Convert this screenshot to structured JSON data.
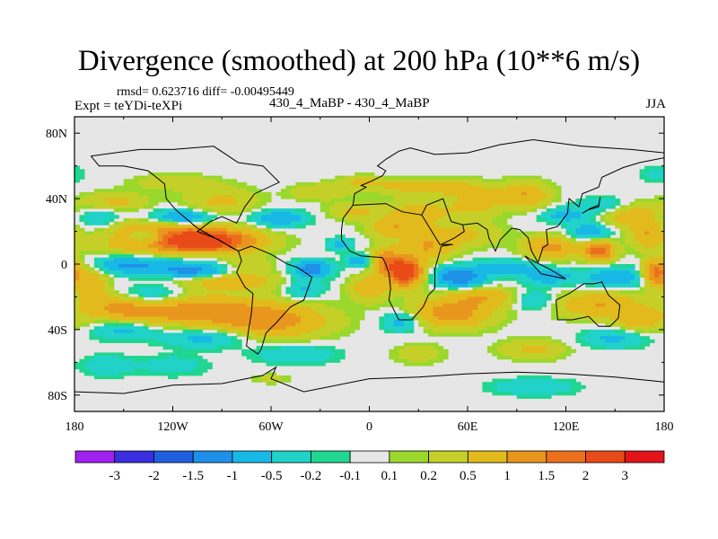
{
  "chart_data": {
    "type": "heatmap",
    "title": "Divergence (smoothed) at 200 hPa (10**6 m/s)",
    "stats_label": "rmsd= 0.623716 diff= -0.00495449",
    "expt_label": "Expt = teYDi-teXPi",
    "comparison_label": "430_4_MaBP - 430_4_MaBP",
    "season_label": "JJA",
    "x_axis": {
      "range": [
        -180,
        180
      ],
      "ticks": [
        -180,
        -120,
        -60,
        0,
        60,
        120,
        180
      ],
      "tick_labels": [
        "180",
        "120W",
        "60W",
        "0",
        "60E",
        "120E",
        "180"
      ]
    },
    "y_axis": {
      "range": [
        -90,
        90
      ],
      "ticks": [
        80,
        40,
        0,
        -40,
        -80
      ],
      "tick_labels": [
        "80N",
        "40N",
        "0",
        "40S",
        "80S"
      ]
    },
    "colorbar": {
      "labels": [
        "-3",
        "-2",
        "-1.5",
        "-1",
        "-0.5",
        "-0.2",
        "-0.1",
        "0.1",
        "0.2",
        "0.5",
        "1",
        "1.5",
        "2",
        "3"
      ],
      "levels": [
        -3,
        -2,
        -1.5,
        -1,
        -0.5,
        -0.2,
        -0.1,
        0.1,
        0.2,
        0.5,
        1,
        1.5,
        2,
        3
      ],
      "colors": [
        "#a020f0",
        "#3a2ee0",
        "#1e5fe0",
        "#1e90e8",
        "#18b8e6",
        "#20d2c8",
        "#20d690",
        "#e6e6e6",
        "#9ad82c",
        "#c4d028",
        "#e2ba1c",
        "#e9961e",
        "#ec701c",
        "#e84a18",
        "#e2141a"
      ]
    },
    "anomaly_centers": [
      {
        "lon": -100,
        "lat": 15,
        "value": 2.2,
        "rx": 30,
        "ry": 7
      },
      {
        "lon": -130,
        "lat": 22,
        "value": 1.0,
        "rx": 30,
        "ry": 7
      },
      {
        "lon": -120,
        "lat": 12,
        "value": 0.9,
        "rx": 45,
        "ry": 6
      },
      {
        "lon": -135,
        "lat": 17,
        "value": -1.1,
        "rx": 12,
        "ry": 5
      },
      {
        "lon": -115,
        "lat": 28,
        "value": -1.2,
        "rx": 22,
        "ry": 5
      },
      {
        "lon": -55,
        "lat": 28,
        "value": -0.9,
        "rx": 16,
        "ry": 5
      },
      {
        "lon": -165,
        "lat": 28,
        "value": -0.6,
        "rx": 15,
        "ry": 6
      },
      {
        "lon": -90,
        "lat": 38,
        "value": 0.6,
        "rx": 22,
        "ry": 9
      },
      {
        "lon": -155,
        "lat": 38,
        "value": 0.6,
        "rx": 20,
        "ry": 6
      },
      {
        "lon": -30,
        "lat": 44,
        "value": 0.5,
        "rx": 18,
        "ry": 5
      },
      {
        "lon": -120,
        "lat": 50,
        "value": 0.4,
        "rx": 25,
        "ry": 5
      },
      {
        "lon": -120,
        "lat": -2,
        "value": -0.7,
        "rx": 40,
        "ry": 5
      },
      {
        "lon": -150,
        "lat": 0,
        "value": -0.7,
        "rx": 20,
        "ry": 5
      },
      {
        "lon": -105,
        "lat": -5,
        "value": -0.9,
        "rx": 20,
        "ry": 4
      },
      {
        "lon": -85,
        "lat": -10,
        "value": 0.9,
        "rx": 30,
        "ry": 6
      },
      {
        "lon": -35,
        "lat": -3,
        "value": -1.3,
        "rx": 12,
        "ry": 5
      },
      {
        "lon": -75,
        "lat": 0,
        "value": 0.6,
        "rx": 15,
        "ry": 5
      },
      {
        "lon": -135,
        "lat": -20,
        "value": -1.0,
        "rx": 22,
        "ry": 7
      },
      {
        "lon": -110,
        "lat": -28,
        "value": 1.3,
        "rx": 45,
        "ry": 9
      },
      {
        "lon": -150,
        "lat": -25,
        "value": 0.9,
        "rx": 25,
        "ry": 9
      },
      {
        "lon": -60,
        "lat": -35,
        "value": 1.2,
        "rx": 35,
        "ry": 10
      },
      {
        "lon": -170,
        "lat": -10,
        "value": 0.8,
        "rx": 10,
        "ry": 10
      },
      {
        "lon": -40,
        "lat": -15,
        "value": -0.6,
        "rx": 12,
        "ry": 6
      },
      {
        "lon": -150,
        "lat": -40,
        "value": -0.7,
        "rx": 18,
        "ry": 6
      },
      {
        "lon": -100,
        "lat": -45,
        "value": -0.7,
        "rx": 25,
        "ry": 6
      },
      {
        "lon": -45,
        "lat": -55,
        "value": -0.5,
        "rx": 25,
        "ry": 6
      },
      {
        "lon": -120,
        "lat": -62,
        "value": -0.4,
        "rx": 20,
        "ry": 6
      },
      {
        "lon": -160,
        "lat": -62,
        "value": -0.5,
        "rx": 15,
        "ry": 6
      },
      {
        "lon": -60,
        "lat": -70,
        "value": 0.3,
        "rx": 12,
        "ry": 3
      },
      {
        "lon": 22,
        "lat": -5,
        "value": 2.7,
        "rx": 10,
        "ry": 8
      },
      {
        "lon": 10,
        "lat": 2,
        "value": 1.3,
        "rx": 10,
        "ry": 8
      },
      {
        "lon": 35,
        "lat": 10,
        "value": 0.9,
        "rx": 15,
        "ry": 8
      },
      {
        "lon": 0,
        "lat": -15,
        "value": 0.8,
        "rx": 12,
        "ry": 8
      },
      {
        "lon": -5,
        "lat": 2,
        "value": -1.0,
        "rx": 8,
        "ry": 4
      },
      {
        "lon": -18,
        "lat": 12,
        "value": -0.6,
        "rx": 8,
        "ry": 4
      },
      {
        "lon": 15,
        "lat": 22,
        "value": 0.9,
        "rx": 15,
        "ry": 6
      },
      {
        "lon": -10,
        "lat": 32,
        "value": 0.6,
        "rx": 15,
        "ry": 5
      },
      {
        "lon": 30,
        "lat": 32,
        "value": 0.7,
        "rx": 22,
        "ry": 7
      },
      {
        "lon": 35,
        "lat": 47,
        "value": 0.8,
        "rx": 30,
        "ry": 5
      },
      {
        "lon": -5,
        "lat": 50,
        "value": 0.5,
        "rx": 15,
        "ry": 4
      },
      {
        "lon": 65,
        "lat": 38,
        "value": 0.7,
        "rx": 15,
        "ry": 9
      },
      {
        "lon": 95,
        "lat": 42,
        "value": 1.0,
        "rx": 15,
        "ry": 8
      },
      {
        "lon": 55,
        "lat": 18,
        "value": 0.6,
        "rx": 25,
        "ry": 8
      },
      {
        "lon": 120,
        "lat": 30,
        "value": -0.7,
        "rx": 15,
        "ry": 5
      },
      {
        "lon": 145,
        "lat": 36,
        "value": -0.6,
        "rx": 15,
        "ry": 5
      },
      {
        "lon": 160,
        "lat": 30,
        "value": 0.8,
        "rx": 18,
        "ry": 8
      },
      {
        "lon": 135,
        "lat": 20,
        "value": -0.9,
        "rx": 12,
        "ry": 5
      },
      {
        "lon": 140,
        "lat": 8,
        "value": 1.8,
        "rx": 10,
        "ry": 6
      },
      {
        "lon": 110,
        "lat": 10,
        "value": 1.2,
        "rx": 15,
        "ry": 7
      },
      {
        "lon": 170,
        "lat": 18,
        "value": 0.9,
        "rx": 10,
        "ry": 8
      },
      {
        "lon": 175,
        "lat": -5,
        "value": 1.8,
        "rx": 8,
        "ry": 8
      },
      {
        "lon": 55,
        "lat": -8,
        "value": -1.5,
        "rx": 15,
        "ry": 6
      },
      {
        "lon": 85,
        "lat": -2,
        "value": -0.7,
        "rx": 20,
        "ry": 5
      },
      {
        "lon": 110,
        "lat": -8,
        "value": -0.8,
        "rx": 15,
        "ry": 5
      },
      {
        "lon": 150,
        "lat": -8,
        "value": -0.9,
        "rx": 18,
        "ry": 6
      },
      {
        "lon": 70,
        "lat": -20,
        "value": 0.8,
        "rx": 20,
        "ry": 6
      },
      {
        "lon": 50,
        "lat": -30,
        "value": 1.3,
        "rx": 25,
        "ry": 9
      },
      {
        "lon": 20,
        "lat": -35,
        "value": -0.8,
        "rx": 12,
        "ry": 6
      },
      {
        "lon": 140,
        "lat": -25,
        "value": 1.0,
        "rx": 25,
        "ry": 8
      },
      {
        "lon": 100,
        "lat": -22,
        "value": -0.6,
        "rx": 12,
        "ry": 6
      },
      {
        "lon": 150,
        "lat": -45,
        "value": -0.6,
        "rx": 20,
        "ry": 6
      },
      {
        "lon": 100,
        "lat": -52,
        "value": 0.6,
        "rx": 20,
        "ry": 6
      },
      {
        "lon": 30,
        "lat": -55,
        "value": 0.4,
        "rx": 15,
        "ry": 6
      },
      {
        "lon": 165,
        "lat": -35,
        "value": 0.8,
        "rx": 15,
        "ry": 7
      },
      {
        "lon": 100,
        "lat": -75,
        "value": -0.5,
        "rx": 25,
        "ry": 5
      },
      {
        "lon": 175,
        "lat": 55,
        "value": -0.3,
        "rx": 10,
        "ry": 5
      }
    ],
    "coastline_shown": true,
    "grid": false
  }
}
